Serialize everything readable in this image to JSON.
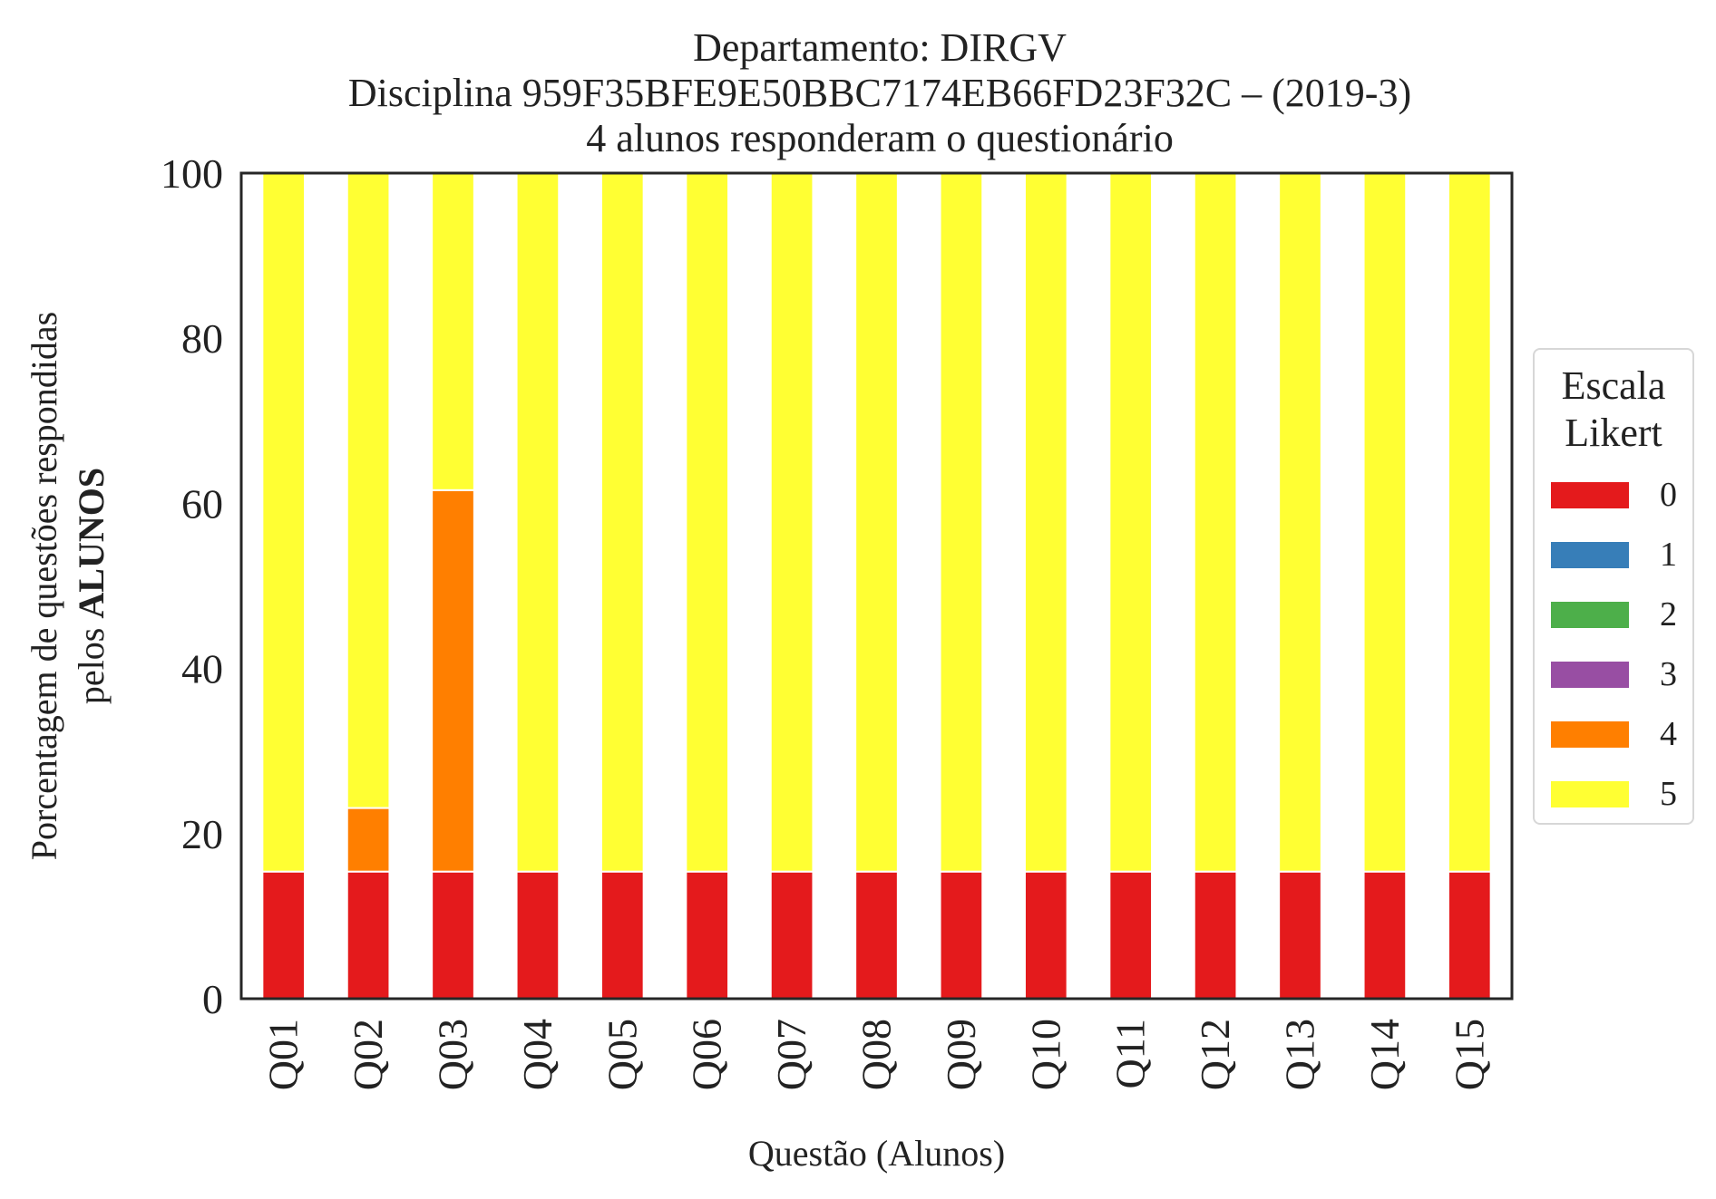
{
  "title": {
    "line1": "Departamento: DIRGV",
    "line2": "Disciplina 959F35BFE9E50BBC7174EB66FD23F32C – (2019-3)",
    "line3": "4 alunos responderam o questionário"
  },
  "legend": {
    "title_line1": "Escala",
    "title_line2": "Likert"
  },
  "chart_data": {
    "type": "bar",
    "stacked": true,
    "title": "Departamento: DIRGV / Disciplina 959F35BFE9E50BBC7174EB66FD23F32C – (2019-3) / 4 alunos responderam o questionário",
    "xlabel": "Questão (Alunos)",
    "ylabel_line1": "Porcentagem de questões respondidas",
    "ylabel_line2_prefix": "pelos ",
    "ylabel_line2_bold": "ALUNOS",
    "ylim": [
      0,
      100
    ],
    "yticks": [
      0,
      20,
      40,
      60,
      80,
      100
    ],
    "legend_position": "right",
    "grid": false,
    "categories": [
      "Q01",
      "Q02",
      "Q03",
      "Q04",
      "Q05",
      "Q06",
      "Q07",
      "Q08",
      "Q09",
      "Q10",
      "Q11",
      "Q12",
      "Q13",
      "Q14",
      "Q15"
    ],
    "series": [
      {
        "name": "0",
        "color": "#e41a1c",
        "values": [
          15.4,
          15.4,
          15.4,
          15.4,
          15.4,
          15.4,
          15.4,
          15.4,
          15.4,
          15.4,
          15.4,
          15.4,
          15.4,
          15.4,
          15.4
        ]
      },
      {
        "name": "1",
        "color": "#377eb8",
        "values": [
          0,
          0,
          0,
          0,
          0,
          0,
          0,
          0,
          0,
          0,
          0,
          0,
          0,
          0,
          0
        ]
      },
      {
        "name": "2",
        "color": "#4daf4a",
        "values": [
          0,
          0,
          0,
          0,
          0,
          0,
          0,
          0,
          0,
          0,
          0,
          0,
          0,
          0,
          0
        ]
      },
      {
        "name": "3",
        "color": "#984ea3",
        "values": [
          0,
          0,
          0,
          0,
          0,
          0,
          0,
          0,
          0,
          0,
          0,
          0,
          0,
          0,
          0
        ]
      },
      {
        "name": "4",
        "color": "#ff7f00",
        "values": [
          0,
          7.7,
          46.2,
          0,
          0,
          0,
          0,
          0,
          0,
          0,
          0,
          0,
          0,
          0,
          0
        ]
      },
      {
        "name": "5",
        "color": "#ffff33",
        "values": [
          84.6,
          76.9,
          38.4,
          84.6,
          84.6,
          84.6,
          84.6,
          84.6,
          84.6,
          84.6,
          84.6,
          84.6,
          84.6,
          84.6,
          84.6
        ]
      }
    ]
  }
}
